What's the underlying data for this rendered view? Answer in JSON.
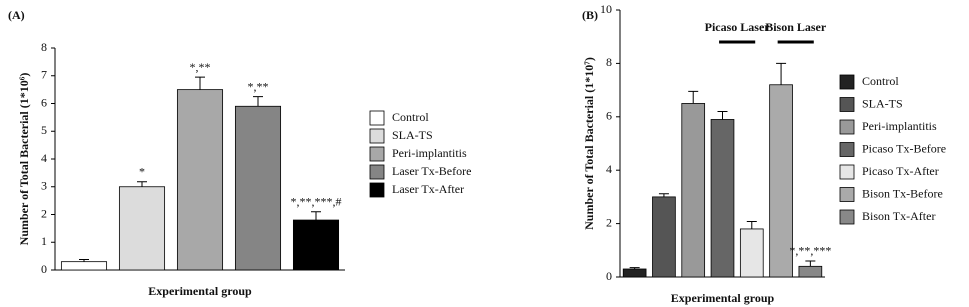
{
  "chart_data": [
    {
      "type": "bar",
      "panel": "(A)",
      "ylabel": "Number of Total Bacterial (1*10⁶)",
      "xlabel": "Experimental group",
      "categories": [
        "Control",
        "SLA-TS",
        "Peri-implantitis",
        "Laser Tx-Before",
        "Laser Tx-After"
      ],
      "values": [
        0.3,
        3.0,
        6.5,
        5.9,
        1.8
      ],
      "errors": [
        0.08,
        0.18,
        0.45,
        0.35,
        0.3
      ],
      "annotations": [
        null,
        "*",
        "*,**",
        "*,**",
        "*,**,***,#"
      ],
      "colors": [
        "#ffffff",
        "#dcdcdc",
        "#a8a8a8",
        "#858585",
        "#000000"
      ],
      "ylim": [
        0,
        8
      ],
      "yticks": [
        0,
        1,
        2,
        3,
        4,
        5,
        6,
        7,
        8
      ]
    },
    {
      "type": "bar",
      "panel": "(B)",
      "ylabel": "Number of Total Bacterial (1*10⁷)",
      "xlabel": "Experimental group",
      "categories": [
        "Control",
        "SLA-TS",
        "Peri-implantitis",
        "Picaso Tx-Before",
        "Picaso Tx-After",
        "Bison Tx-Before",
        "Bison Tx-After"
      ],
      "values": [
        0.3,
        3.0,
        6.5,
        5.9,
        1.8,
        7.2,
        0.4
      ],
      "errors": [
        0.05,
        0.12,
        0.45,
        0.3,
        0.28,
        0.8,
        0.2
      ],
      "annotations": [
        null,
        null,
        null,
        null,
        null,
        null,
        "*,**,***"
      ],
      "colors": [
        "#222222",
        "#555555",
        "#999999",
        "#666666",
        "#e6e6e6",
        "#aaaaaa",
        "#888888"
      ],
      "bracket_labels": [
        "Picaso Laser",
        "Bison Laser"
      ],
      "ylim": [
        0,
        10
      ],
      "yticks": [
        0,
        2,
        4,
        6,
        8,
        10
      ]
    }
  ]
}
